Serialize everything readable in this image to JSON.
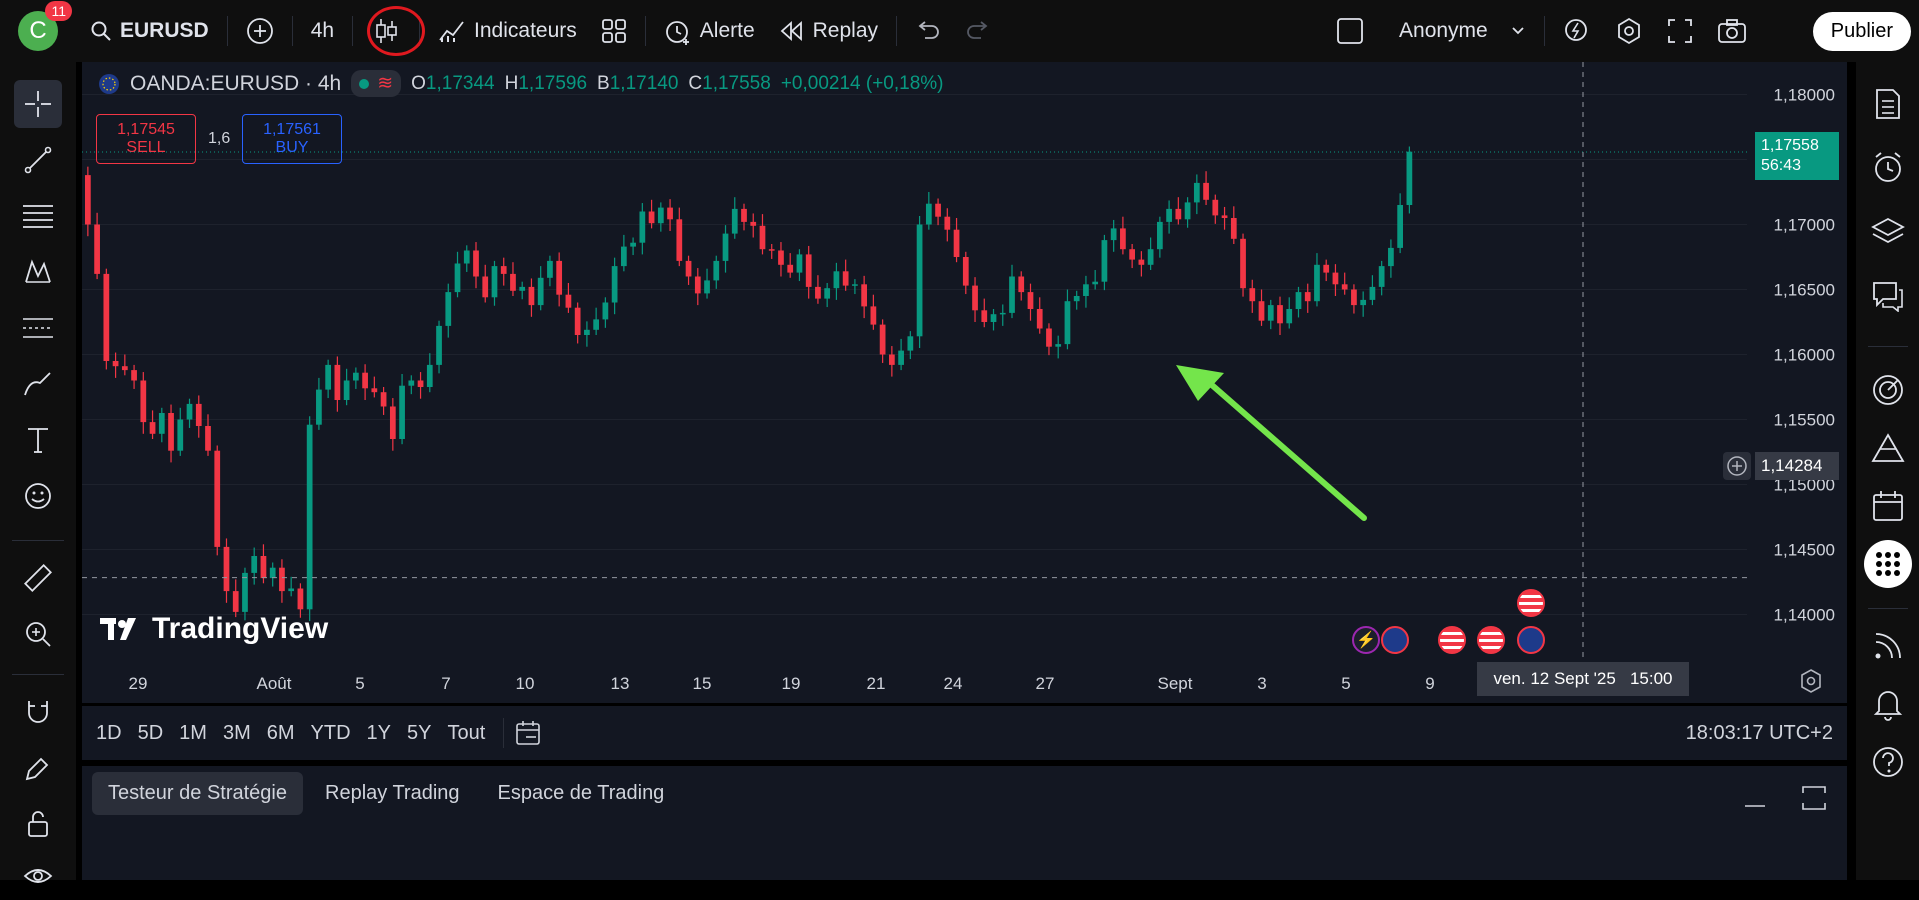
{
  "topbar": {
    "avatar_letter": "C",
    "notifications": "11",
    "symbol": "EURUSD",
    "interval": "4h",
    "indicators": "Indicateurs",
    "alert": "Alerte",
    "replay": "Replay",
    "layout_name": "Anonyme",
    "publish": "Publier"
  },
  "chart": {
    "title": "OANDA:EURUSD · 4h",
    "ohlc": {
      "o_label": "O",
      "o": "1,17344",
      "h_label": "H",
      "h": "1,17596",
      "b_label": "B",
      "b": "1,17140",
      "c_label": "C",
      "c": "1,17558",
      "change": "+0,00214 (+0,18%)"
    },
    "sell_price": "1,17545",
    "sell_label": "SELL",
    "spread": "1,6",
    "buy_price": "1,17561",
    "buy_label": "BUY",
    "watermark": "TradingView",
    "last_price": "1,17558",
    "countdown": "56:43",
    "crosshair_price": "1,14284",
    "crosshair_time": "ven. 12 Sept '25   15:00",
    "y_ticks": [
      "1,18000",
      "1,17500",
      "1,17000",
      "1,16500",
      "1,16000",
      "1,15500",
      "1,15000",
      "1,14500",
      "1,14000"
    ],
    "x_ticks": [
      "29",
      "Août",
      "5",
      "7",
      "10",
      "13",
      "15",
      "19",
      "21",
      "24",
      "27",
      "Sept",
      "3",
      "5",
      "9"
    ],
    "colors": {
      "up": "#089981",
      "down": "#f23645",
      "background": "#131722",
      "arrow": "#74e54b"
    }
  },
  "chart_data": {
    "type": "candlestick",
    "symbol": "OANDA:EURUSD",
    "interval": "4h",
    "ylim": [
      1.1375,
      1.1825
    ],
    "x_ticks": [
      "29",
      "Août",
      "5",
      "7",
      "10",
      "13",
      "15",
      "19",
      "21",
      "24",
      "27",
      "Sept",
      "3",
      "5",
      "9"
    ],
    "closes": [
      1.1738,
      1.17,
      1.1662,
      1.1595,
      1.1591,
      1.1588,
      1.158,
      1.1548,
      1.1539,
      1.1555,
      1.1526,
      1.155,
      1.1562,
      1.1545,
      1.1526,
      1.1452,
      1.1418,
      1.1402,
      1.1432,
      1.1445,
      1.1428,
      1.1436,
      1.1418,
      1.142,
      1.1404,
      1.1546,
      1.1573,
      1.1592,
      1.1565,
      1.158,
      1.1586,
      1.1574,
      1.1571,
      1.156,
      1.1535,
      1.1576,
      1.158,
      1.1575,
      1.1592,
      1.1622,
      1.1648,
      1.167,
      1.168,
      1.166,
      1.1644,
      1.1668,
      1.1662,
      1.1649,
      1.1652,
      1.1638,
      1.1659,
      1.1672,
      1.1646,
      1.1636,
      1.1615,
      1.1619,
      1.1627,
      1.164,
      1.1668,
      1.1683,
      1.1686,
      1.171,
      1.1701,
      1.1713,
      1.1704,
      1.1672,
      1.166,
      1.1647,
      1.1657,
      1.1672,
      1.1693,
      1.1712,
      1.1702,
      1.1699,
      1.1681,
      1.168,
      1.1669,
      1.1663,
      1.1677,
      1.1652,
      1.1643,
      1.1651,
      1.1664,
      1.1653,
      1.1654,
      1.1637,
      1.1623,
      1.16,
      1.1592,
      1.1603,
      1.1614,
      1.17,
      1.1716,
      1.1706,
      1.1696,
      1.1675,
      1.1653,
      1.1634,
      1.1625,
      1.1631,
      1.1632,
      1.166,
      1.1648,
      1.1635,
      1.162,
      1.1606,
      1.1608,
      1.1641,
      1.1645,
      1.1654,
      1.1656,
      1.1688,
      1.1697,
      1.1681,
      1.1673,
      1.1669,
      1.1681,
      1.1702,
      1.1712,
      1.1704,
      1.1717,
      1.1732,
      1.1719,
      1.1707,
      1.1705,
      1.1689,
      1.1651,
      1.1641,
      1.1626,
      1.1638,
      1.1624,
      1.1635,
      1.1648,
      1.1641,
      1.1669,
      1.1663,
      1.1654,
      1.165,
      1.1638,
      1.1642,
      1.1652,
      1.1668,
      1.1682,
      1.1715,
      1.1756
    ]
  },
  "range": {
    "buttons": [
      "1D",
      "5D",
      "1M",
      "3M",
      "6M",
      "YTD",
      "1Y",
      "5Y",
      "Tout"
    ],
    "clock": "18:03:17 UTC+2"
  },
  "panel": {
    "tabs": [
      "Testeur de Stratégie",
      "Replay Trading",
      "Espace de Trading"
    ]
  }
}
